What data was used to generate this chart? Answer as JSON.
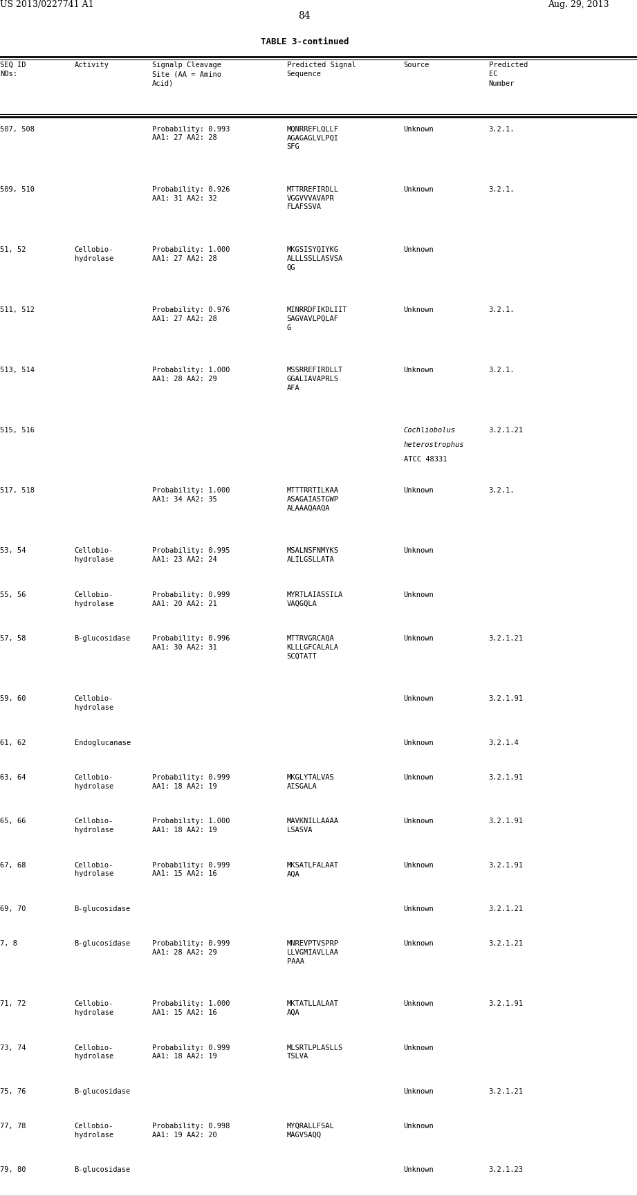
{
  "header_left": "US 2013/0227741 A1",
  "header_right": "Aug. 29, 2013",
  "page_number": "84",
  "table_title": "TABLE 3-continued",
  "col_headers": [
    "SEQ ID\nNOs:",
    "Activity",
    "Signalp Cleavage\nSite (AA = Amino\nAcid)",
    "Predicted Signal\nSequence",
    "Source",
    "Predicted\nEC\nNumber"
  ],
  "rows": [
    [
      "507, 508",
      "",
      "Probability: 0.993\nAA1: 27 AA2: 28",
      "MQNRREFLQLLF\nAGAGAGLVLPQI\nSFG",
      "Unknown",
      "3.2.1."
    ],
    [
      "509, 510",
      "",
      "Probability: 0.926\nAA1: 31 AA2: 32",
      "MTTRREFIRDLL\nVGGVVVAVAPR\nFLAFSSVA",
      "Unknown",
      "3.2.1."
    ],
    [
      "51, 52",
      "Cellobio-\nhydrolase",
      "Probability: 1.000\nAA1: 27 AA2: 28",
      "MKGSISYQIYKG\nALLLSSLLASVSA\nQG",
      "Unknown",
      ""
    ],
    [
      "511, 512",
      "",
      "Probability: 0.976\nAA1: 27 AA2: 28",
      "MINRRDFIKDLIIT\nSAGVAVLPQLAF\nG",
      "Unknown",
      "3.2.1."
    ],
    [
      "513, 514",
      "",
      "Probability: 1.000\nAA1: 28 AA2: 29",
      "MSSRREFIRDLLT\nGGALIAVAPRLS\nAFA",
      "Unknown",
      "3.2.1."
    ],
    [
      "515, 516",
      "",
      "",
      "",
      "Cochliobolus\nheterostrophus\nATCC 48331",
      "3.2.1.21"
    ],
    [
      "517, 518",
      "",
      "Probability: 1.000\nAA1: 34 AA2: 35",
      "MTTTRRTILKAA\nASAGAIASTGWP\nALAAAQAAQA",
      "Unknown",
      "3.2.1."
    ],
    [
      "53, 54",
      "Cellobio-\nhydrolase",
      "Probability: 0.995\nAA1: 23 AA2: 24",
      "MSALNSFNMYKS\nALILGSLLATA",
      "Unknown",
      ""
    ],
    [
      "55, 56",
      "Cellobio-\nhydrolase",
      "Probability: 0.999\nAA1: 20 AA2: 21",
      "MYRTLAIASSILA\nVAQGQLA",
      "Unknown",
      ""
    ],
    [
      "57, 58",
      "B-glucosidase",
      "Probability: 0.996\nAA1: 30 AA2: 31",
      "MTTRVGRCAQA\nKLLLGFCALALA\nSCQTATT",
      "Unknown",
      "3.2.1.21"
    ],
    [
      "59, 60",
      "Cellobio-\nhydrolase",
      "",
      "",
      "Unknown",
      "3.2.1.91"
    ],
    [
      "61, 62",
      "Endoglucanase",
      "",
      "",
      "Unknown",
      "3.2.1.4"
    ],
    [
      "63, 64",
      "Cellobio-\nhydrolase",
      "Probability: 0.999\nAA1: 18 AA2: 19",
      "MKGLYTALVAS\nAISGALA",
      "Unknown",
      "3.2.1.91"
    ],
    [
      "65, 66",
      "Cellobio-\nhydrolase",
      "Probability: 1.000\nAA1: 18 AA2: 19",
      "MAVKNILLAAAA\nLSASVA",
      "Unknown",
      "3.2.1.91"
    ],
    [
      "67, 68",
      "Cellobio-\nhydrolase",
      "Probability: 0.999\nAA1: 15 AA2: 16",
      "MKSATLFALAAT\nAQA",
      "Unknown",
      "3.2.1.91"
    ],
    [
      "69, 70",
      "B-glucosidase",
      "",
      "",
      "Unknown",
      "3.2.1.21"
    ],
    [
      "7, 8",
      "B-glucosidase",
      "Probability: 0.999\nAA1: 28 AA2: 29",
      "MNREVPTVSPRP\nLLVGMIAVLLAA\nPAAA",
      "Unknown",
      "3.2.1.21"
    ],
    [
      "71, 72",
      "Cellobio-\nhydrolase",
      "Probability: 1.000\nAA1: 15 AA2: 16",
      "MKTATLLALAAT\nAQA",
      "Unknown",
      "3.2.1.91"
    ],
    [
      "73, 74",
      "Cellobio-\nhydrolase",
      "Probability: 0.999\nAA1: 18 AA2: 19",
      "MLSRTLPLASLLS\nTSLVA",
      "Unknown",
      ""
    ],
    [
      "75, 76",
      "B-glucosidase",
      "",
      "",
      "Unknown",
      "3.2.1.21"
    ],
    [
      "77, 78",
      "Cellobio-\nhydrolase",
      "Probability: 0.998\nAA1: 19 AA2: 20",
      "MYQRALLFSAL\nMAGVSAQQ",
      "Unknown",
      ""
    ],
    [
      "79, 80",
      "B-glucosidase",
      "",
      "",
      "Unknown",
      "3.2.1.23"
    ]
  ],
  "bg_color": "#ffffff",
  "text_color": "#000000",
  "font_size": 7.5,
  "mono_font_size": 7.5
}
